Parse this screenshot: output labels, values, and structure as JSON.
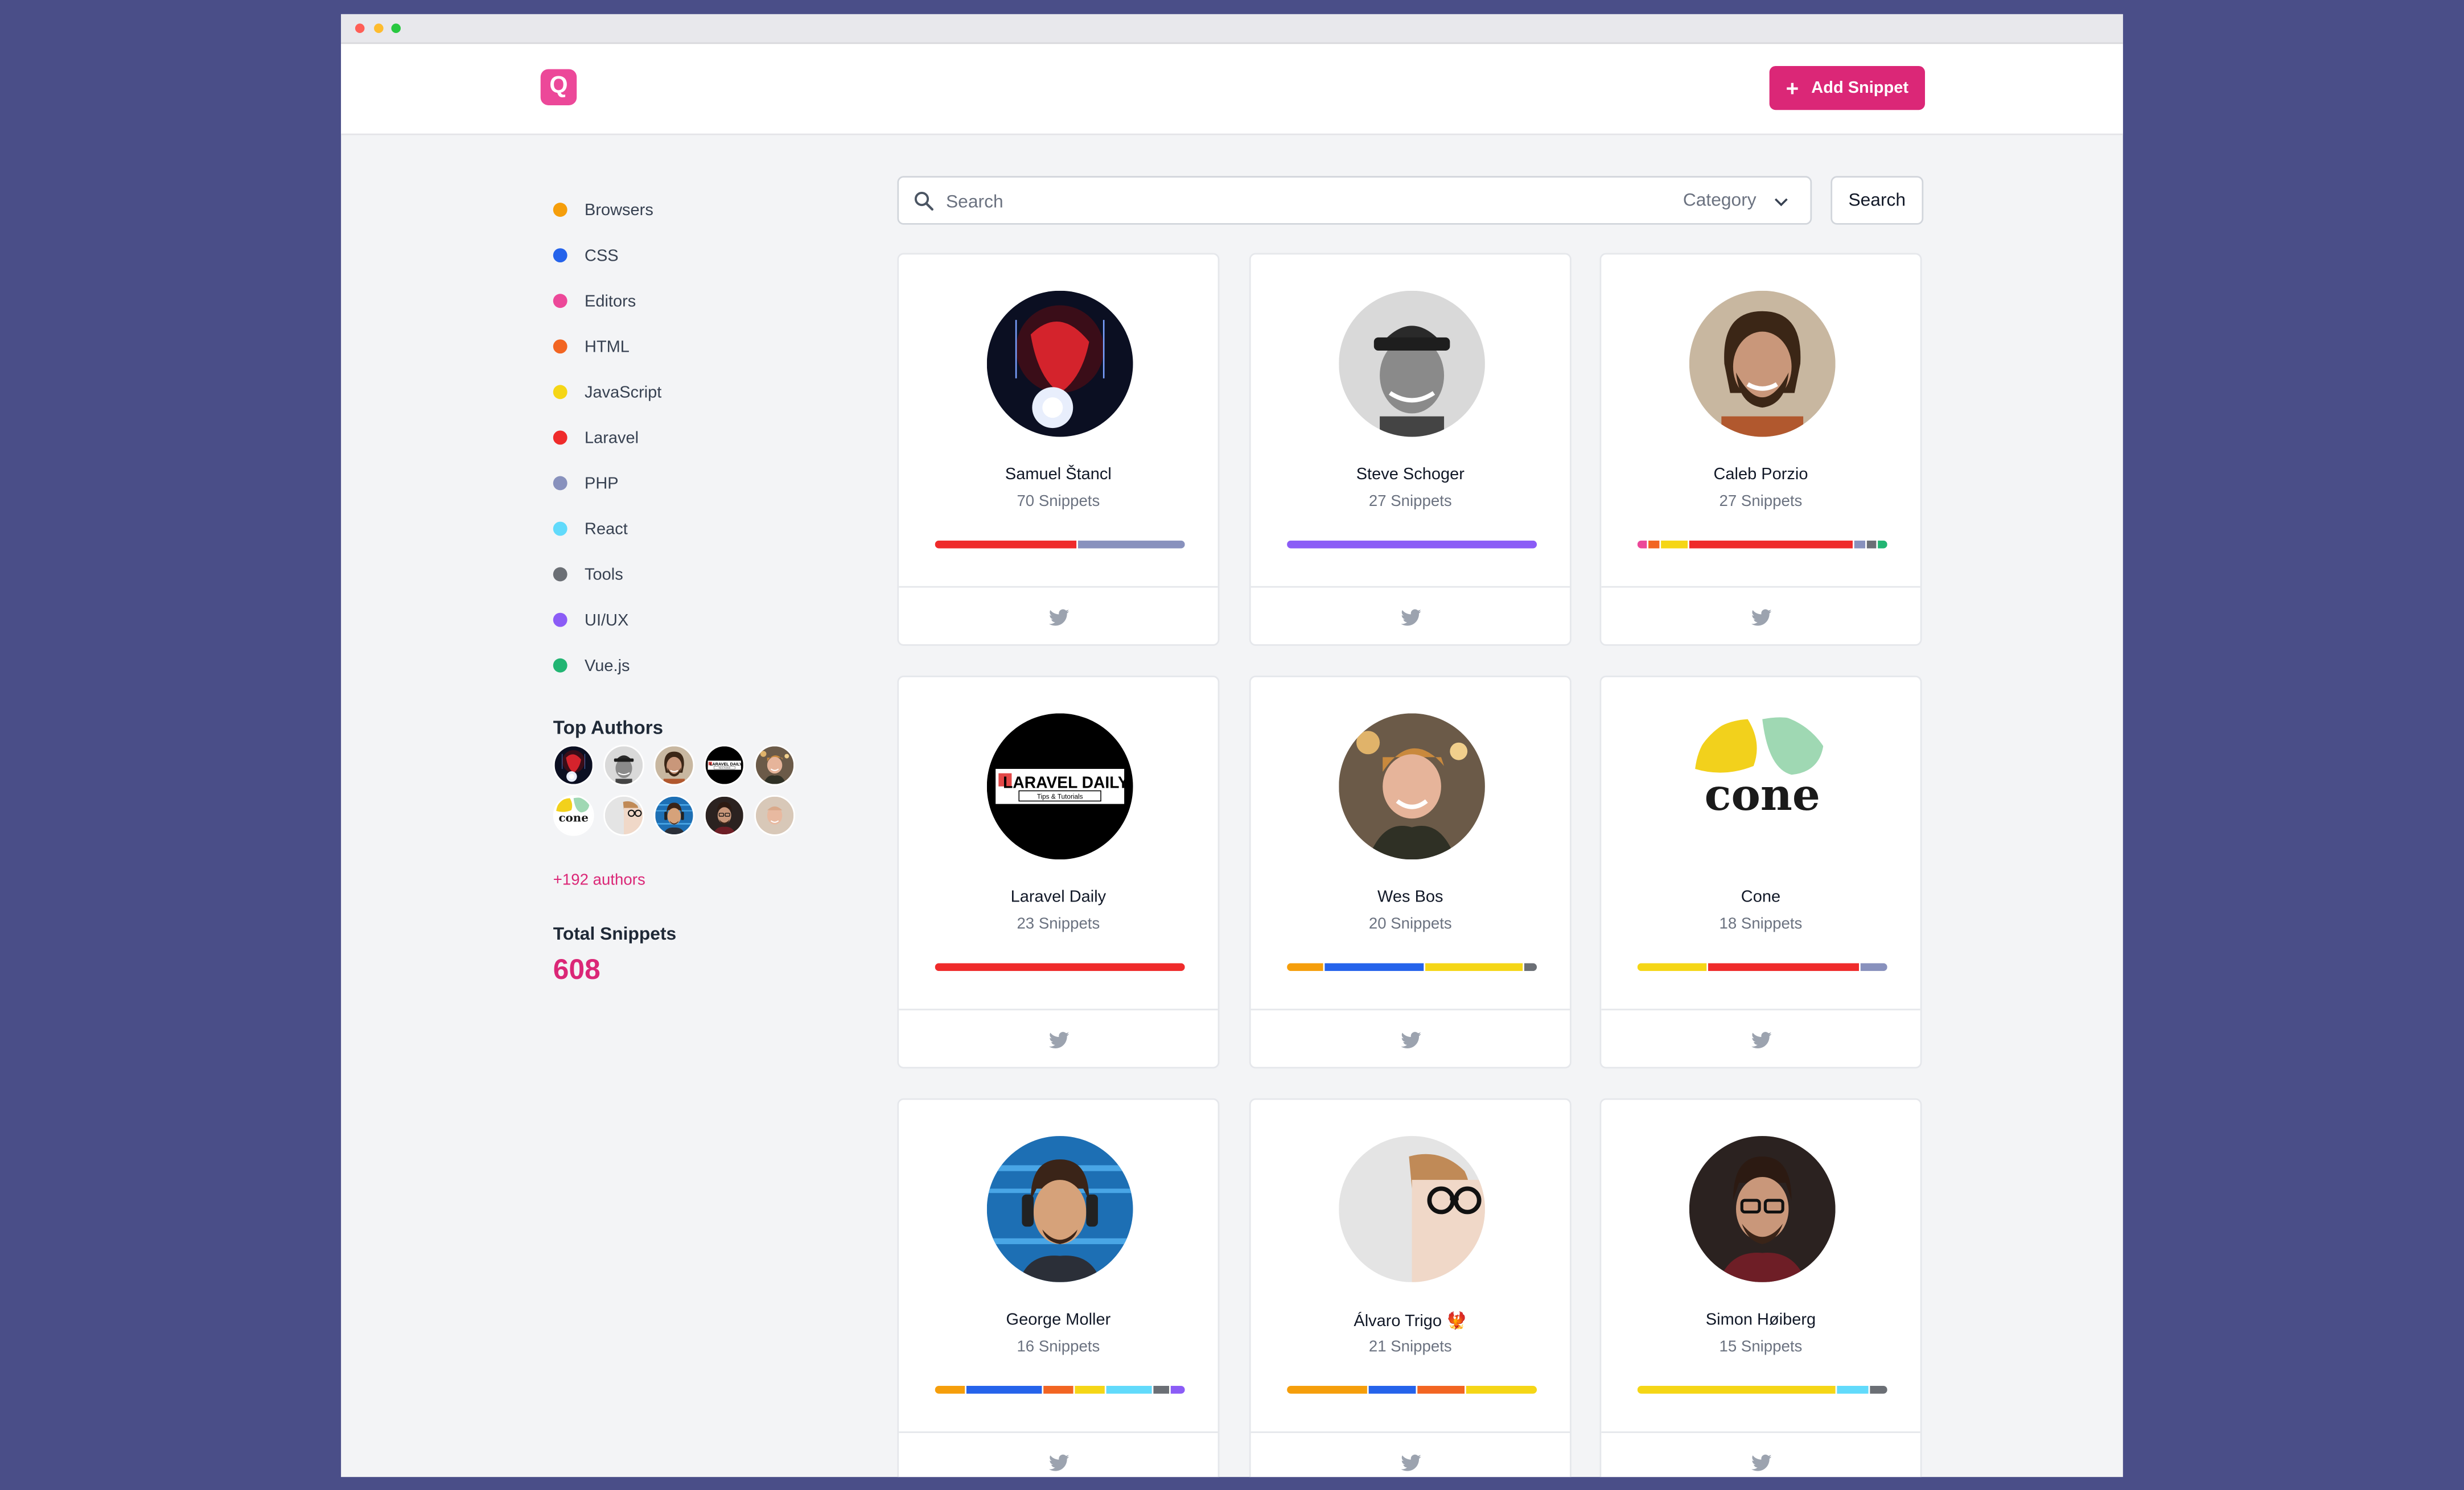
{
  "header": {
    "logo_letter": "Q",
    "add_snippet_label": "Add Snippet"
  },
  "categories": [
    {
      "label": "Browsers",
      "color": "#f59e0b"
    },
    {
      "label": "CSS",
      "color": "#2563eb"
    },
    {
      "label": "Editors",
      "color": "#ec4899"
    },
    {
      "label": "HTML",
      "color": "#f26522"
    },
    {
      "label": "JavaScript",
      "color": "#f5d616"
    },
    {
      "label": "Laravel",
      "color": "#ef2b2b"
    },
    {
      "label": "PHP",
      "color": "#8891bd"
    },
    {
      "label": "React",
      "color": "#61dafb"
    },
    {
      "label": "Tools",
      "color": "#6b6f75"
    },
    {
      "label": "UI/UX",
      "color": "#8b5cf6"
    },
    {
      "label": "Vue.js",
      "color": "#22b573"
    }
  ],
  "sidebar": {
    "top_authors_title": "Top Authors",
    "more_authors": "+192 authors",
    "total_title": "Total Snippets",
    "total_count": "608"
  },
  "search": {
    "placeholder": "Search",
    "category_label": "Category",
    "button_label": "Search"
  },
  "authors": [
    {
      "name": "Samuel Štancl",
      "snippets": "70 Snippets",
      "bar": [
        {
          "c": "Laravel",
          "w": 57
        },
        {
          "c": "PHP",
          "w": 43
        }
      ]
    },
    {
      "name": "Steve Schoger",
      "snippets": "27 Snippets",
      "bar": [
        {
          "c": "UI/UX",
          "w": 100
        }
      ]
    },
    {
      "name": "Caleb Porzio",
      "snippets": "27 Snippets",
      "bar": [
        {
          "c": "Editors",
          "w": 4
        },
        {
          "c": "HTML",
          "w": 4
        },
        {
          "c": "JavaScript",
          "w": 11
        },
        {
          "c": "Laravel",
          "w": 67
        },
        {
          "c": "PHP",
          "w": 4
        },
        {
          "c": "Tools",
          "w": 4
        },
        {
          "c": "Vue.js",
          "w": 4
        }
      ]
    },
    {
      "name": "Laravel Daily",
      "snippets": "23 Snippets",
      "bar": [
        {
          "c": "Laravel",
          "w": 100
        }
      ]
    },
    {
      "name": "Wes Bos",
      "snippets": "20 Snippets",
      "bar": [
        {
          "c": "Browsers",
          "w": 15
        },
        {
          "c": "CSS",
          "w": 40
        },
        {
          "c": "JavaScript",
          "w": 40
        },
        {
          "c": "Tools",
          "w": 5
        }
      ]
    },
    {
      "name": "Cone",
      "snippets": "18 Snippets",
      "bar": [
        {
          "c": "JavaScript",
          "w": 28
        },
        {
          "c": "Laravel",
          "w": 61
        },
        {
          "c": "PHP",
          "w": 11
        }
      ]
    },
    {
      "name": "George Moller",
      "snippets": "16 Snippets",
      "bar": [
        {
          "c": "Browsers",
          "w": 12
        },
        {
          "c": "CSS",
          "w": 31
        },
        {
          "c": "HTML",
          "w": 12
        },
        {
          "c": "JavaScript",
          "w": 12
        },
        {
          "c": "React",
          "w": 19
        },
        {
          "c": "Tools",
          "w": 6
        },
        {
          "c": "UI/UX",
          "w": 6
        }
      ]
    },
    {
      "name": "Álvaro Trigo 🐦‍🔥",
      "snippets": "21 Snippets",
      "bar": [
        {
          "c": "Browsers",
          "w": 33
        },
        {
          "c": "CSS",
          "w": 19
        },
        {
          "c": "HTML",
          "w": 19
        },
        {
          "c": "JavaScript",
          "w": 29
        }
      ]
    },
    {
      "name": "Simon Høiberg",
      "snippets": "15 Snippets",
      "bar": [
        {
          "c": "JavaScript",
          "w": 80
        },
        {
          "c": "React",
          "w": 13
        },
        {
          "c": "Tools",
          "w": 7
        }
      ]
    }
  ]
}
